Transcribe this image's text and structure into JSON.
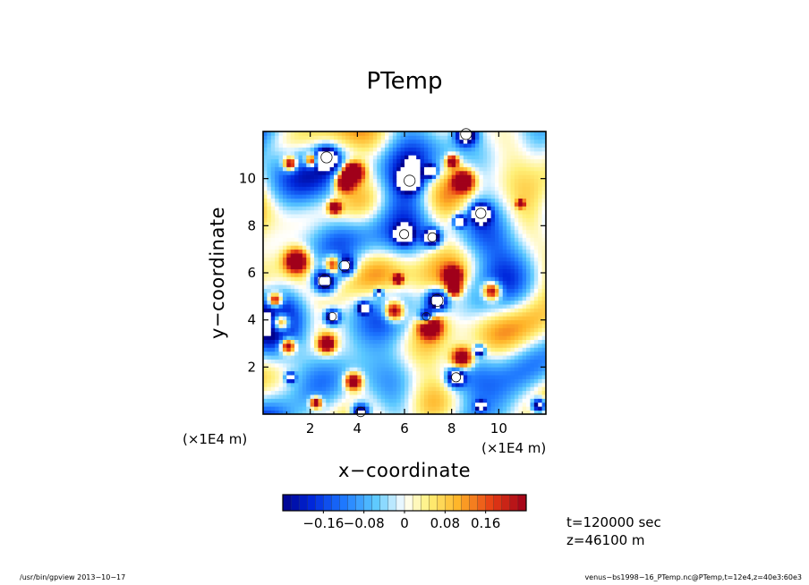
{
  "chart_data": {
    "type": "heatmap",
    "title": "PTemp",
    "xlabel": "x−coordinate",
    "ylabel": "y−coordinate",
    "x_unit": "(×1E4 m)",
    "y_unit": "(×1E4 m)",
    "xlim": [
      0,
      12
    ],
    "ylim": [
      0,
      12
    ],
    "x_ticks": [
      2,
      4,
      6,
      8,
      10
    ],
    "y_ticks": [
      2,
      4,
      6,
      8,
      10
    ],
    "x_tick_labels": [
      "2",
      "4",
      "6",
      "8",
      "10"
    ],
    "y_tick_labels": [
      "2",
      "4",
      "6",
      "8",
      "10"
    ],
    "colorbar": {
      "range": [
        -0.24,
        0.24
      ],
      "tick_values": [
        -0.16,
        -0.08,
        0,
        0.08,
        0.16
      ],
      "tick_labels": [
        "−0.16",
        "−0.08",
        "0",
        "0.08",
        "0.16"
      ],
      "levels": 30
    },
    "annotations": [
      "t=120000 sec",
      "z=46100 m"
    ],
    "colors": {
      "low": "#00008c",
      "mid": "#ffffff",
      "high": "#a0001a"
    }
  },
  "footer": {
    "left": "/usr/bin/gpview   2013−10−17",
    "right": "venus−bs1998−16_PTemp.nc@PTemp,t=12e4,z=40e3:60e3"
  }
}
